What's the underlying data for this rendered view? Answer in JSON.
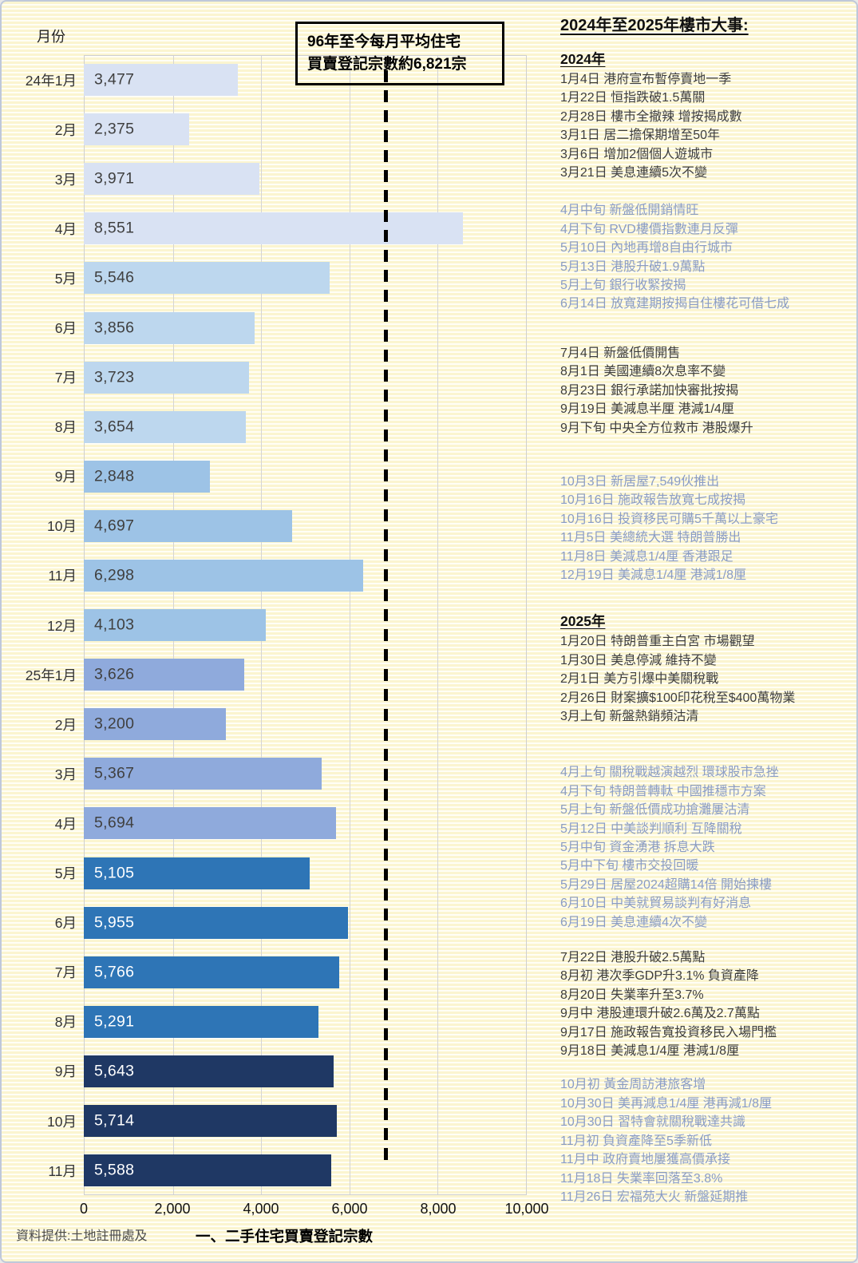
{
  "palette": {
    "bar_groups": [
      "#D9E2F3",
      "#BDD7EE",
      "#9DC3E6",
      "#8FAADC",
      "#2E75B6",
      "#1F3864"
    ],
    "value_text_dark": "#404040",
    "value_text_light": "#FFFFFF",
    "event_text_dark": "#3D3D3D",
    "event_text_blue": "#8A9CC4",
    "average_line_color": "#000000",
    "grid_color": "#D4D4D4",
    "background_stripe": "#FBF5D0"
  },
  "chart": {
    "y_axis_title": "月份",
    "x_ticks": [
      "0",
      "2,000",
      "4,000",
      "6,000",
      "8,000",
      "10,000"
    ],
    "annotation_box": {
      "line1": "96年至今每月平均住宅",
      "line2": "買賣登記宗數約6,821宗"
    },
    "source_note": "資料提供:土地註冊處及",
    "x_axis_title": "一、二手住宅買賣登記宗數"
  },
  "chart_data": {
    "type": "bar",
    "orientation": "horizontal",
    "xlim": [
      0,
      10000
    ],
    "grid": true,
    "average_line": 6821,
    "xlabel": "一、二手住宅買賣登記宗數",
    "ylabel": "月份",
    "rows": [
      {
        "month": "24年1月",
        "value": 3477,
        "label": "3,477",
        "group": 0
      },
      {
        "month": "2月",
        "value": 2375,
        "label": "2,375",
        "group": 0
      },
      {
        "month": "3月",
        "value": 3971,
        "label": "3,971",
        "group": 0
      },
      {
        "month": "4月",
        "value": 8551,
        "label": "8,551",
        "group": 0
      },
      {
        "month": "5月",
        "value": 5546,
        "label": "5,546",
        "group": 1
      },
      {
        "month": "6月",
        "value": 3856,
        "label": "3,856",
        "group": 1
      },
      {
        "month": "7月",
        "value": 3723,
        "label": "3,723",
        "group": 1
      },
      {
        "month": "8月",
        "value": 3654,
        "label": "3,654",
        "group": 1
      },
      {
        "month": "9月",
        "value": 2848,
        "label": "2,848",
        "group": 2
      },
      {
        "month": "10月",
        "value": 4697,
        "label": "4,697",
        "group": 2
      },
      {
        "month": "11月",
        "value": 6298,
        "label": "6,298",
        "group": 2
      },
      {
        "month": "12月",
        "value": 4103,
        "label": "4,103",
        "group": 2
      },
      {
        "month": "25年1月",
        "value": 3626,
        "label": "3,626",
        "group": 3
      },
      {
        "month": "2月",
        "value": 3200,
        "label": "3,200",
        "group": 3
      },
      {
        "month": "3月",
        "value": 5367,
        "label": "5,367",
        "group": 3
      },
      {
        "month": "4月",
        "value": 5694,
        "label": "5,694",
        "group": 3
      },
      {
        "month": "5月",
        "value": 5105,
        "label": "5,105",
        "group": 4
      },
      {
        "month": "6月",
        "value": 5955,
        "label": "5,955",
        "group": 4
      },
      {
        "month": "7月",
        "value": 5766,
        "label": "5,766",
        "group": 4
      },
      {
        "month": "8月",
        "value": 5291,
        "label": "5,291",
        "group": 4
      },
      {
        "month": "9月",
        "value": 5643,
        "label": "5,643",
        "group": 5
      },
      {
        "month": "10月",
        "value": 5714,
        "label": "5,714",
        "group": 5
      },
      {
        "month": "11月",
        "value": 5588,
        "label": "5,588",
        "group": 5
      }
    ]
  },
  "events_panel": {
    "title": "2024年至2025年樓市大事:",
    "sections": [
      {
        "year_label": "2024年",
        "groups": [
          {
            "tone": "dark",
            "lines": [
              "1月4日 港府宣布暫停賣地一季",
              "1月22日 恒指跌破1.5萬關",
              "2月28日 樓市全撤辣 增按揭成數",
              "3月1日 居二擔保期增至50年",
              "3月6日 增加2個個人遊城市",
              "3月21日 美息連續5次不變"
            ]
          },
          {
            "tone": "blue",
            "lines": [
              "4月中旬 新盤低開銷情旺",
              "4月下旬 RVD樓價指數連月反彈",
              "5月10日 內地再增8自由行城市",
              "5月13日 港股升破1.9萬點",
              "5月上旬 銀行收緊按揭",
              "6月14日 放寬建期按揭自住樓花可借七成"
            ]
          },
          {
            "tone": "dark",
            "lines": [
              "7月4日 新盤低價開售",
              "8月1日 美國連續8次息率不變",
              "8月23日 銀行承諾加快審批按揭",
              "9月19日 美減息半厘 港減1/4厘",
              "9月下旬 中央全方位救市 港股爆升"
            ]
          },
          {
            "tone": "blue",
            "lines": [
              "10月3日 新居屋7,549伙推出",
              "10月16日 施政報告放寬七成按揭",
              "10月16日 投資移民可購5千萬以上豪宅",
              "11月5日 美總統大選 特朗普勝出",
              "11月8日 美減息1/4厘 香港跟足",
              "12月19日 美減息1/4厘 港減1/8厘"
            ]
          }
        ]
      },
      {
        "year_label": "2025年",
        "groups": [
          {
            "tone": "dark",
            "lines": [
              "1月20日 特朗普重主白宮 市場觀望",
              "1月30日 美息停減 維持不變",
              "2月1日 美方引爆中美關稅戰",
              "2月26日 財案擴$100印花稅至$400萬物業",
              "3月上旬 新盤熱銷頻沽清"
            ]
          },
          {
            "tone": "blue",
            "lines": [
              "4月上旬 關稅戰越演越烈 環球股市急挫",
              "4月下旬 特朗普轉軚 中國推穩市方案",
              "5月上旬 新盤低價成功搶灘屢沽清",
              "5月12日 中美談判順利 互降關稅",
              "5月中旬 資金湧港 拆息大跌",
              "5月中下旬 樓市交投回暖",
              "5月29日 居屋2024超購14倍 開始揀樓",
              "6月10日 中美就貿易談判有好消息",
              "6月19日 美息連續4次不變"
            ]
          },
          {
            "tone": "dark",
            "lines": [
              "7月22日 港股升破2.5萬點",
              "8月初 港次季GDP升3.1% 負資產降",
              "8月20日 失業率升至3.7%",
              "9月中 港股連環升破2.6萬及2.7萬點",
              "9月17日 施政報告寬投資移民入場門檻",
              "9月18日 美減息1/4厘 港減1/8厘"
            ]
          },
          {
            "tone": "blue",
            "lines": [
              "10月初 黃金周訪港旅客增",
              "10月30日 美再減息1/4厘 港再減1/8厘",
              "10月30日 習特會就關稅戰達共識",
              "11月初 負資產降至5季新低",
              "11月中 政府賣地屢獲高價承接",
              "11月18日 失業率回落至3.8%",
              "11月26日 宏福苑大火 新盤延期推"
            ]
          }
        ]
      }
    ]
  }
}
